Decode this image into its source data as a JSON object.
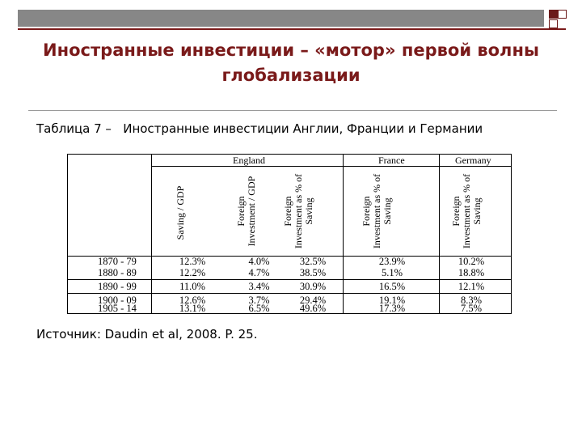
{
  "slide": {
    "title_line1": "Иностранные инвестиции – «мотор» первой волны",
    "title_line2": "глобализации",
    "caption": "Таблица 7 –   Иностранные инвестиции Англии, Франции и Германии",
    "source": "Источник: Daudin et al, 2008. P. 25."
  },
  "table": {
    "groups": [
      "England",
      "France",
      "Germany"
    ],
    "column_headers": [
      "Saving / GDP",
      "Foreign\nInvestment / GDP",
      "Foreign\nInvestment as % of\nSaving",
      "Foreign\nInvestment as % of\nSaving",
      "Foreign\nInvestment as % of\nSaving"
    ],
    "rows": [
      {
        "period": "1870 - 79",
        "values": [
          "12.3%",
          "4.0%",
          "32.5%",
          "23.9%",
          "10.2%"
        ]
      },
      {
        "period": "1880 - 89",
        "values": [
          "12.2%",
          "4.7%",
          "38.5%",
          "5.1%",
          "18.8%"
        ]
      },
      {
        "period": "1890 - 99",
        "values": [
          "11.0%",
          "3.4%",
          "30.9%",
          "16.5%",
          "12.1%"
        ]
      },
      {
        "period": "1900 - 09",
        "values": [
          "12.6%",
          "3.7%",
          "29.4%",
          "19.1%",
          "8.3%"
        ]
      },
      {
        "period": "1905 - 14",
        "values": [
          "13.1%",
          "6.5%",
          "49.6%",
          "17.3%",
          "7.5%"
        ]
      }
    ]
  }
}
